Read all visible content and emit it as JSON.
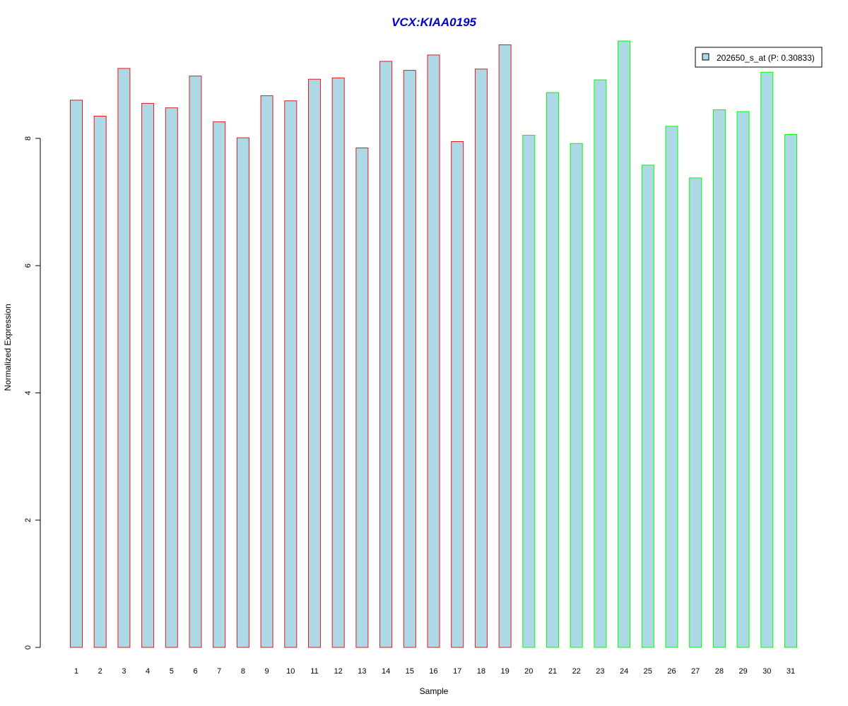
{
  "chart_data": {
    "type": "bar",
    "title": "VCX:KIAA0195",
    "xlabel": "Sample",
    "ylabel": "Normalized Expression",
    "ylim": [
      0,
      9.6
    ],
    "yticks": [
      0,
      2,
      4,
      6,
      8
    ],
    "ytick_labels": [
      "0",
      "2",
      "4",
      "6",
      "8"
    ],
    "categories": [
      "1",
      "2",
      "3",
      "4",
      "5",
      "6",
      "7",
      "8",
      "9",
      "10",
      "11",
      "12",
      "13",
      "14",
      "15",
      "16",
      "17",
      "18",
      "19",
      "20",
      "21",
      "22",
      "23",
      "24",
      "25",
      "26",
      "27",
      "28",
      "29",
      "30",
      "31"
    ],
    "series": [
      {
        "name": "202650_s_at (P: 0.30833)",
        "values": [
          8.6,
          8.35,
          9.1,
          8.55,
          8.48,
          8.98,
          8.26,
          8.01,
          8.67,
          8.59,
          8.93,
          8.95,
          7.85,
          9.21,
          9.07,
          9.31,
          7.95,
          9.09,
          9.47,
          8.05,
          8.72,
          7.92,
          8.92,
          9.53,
          7.58,
          8.19,
          7.38,
          8.45,
          8.42,
          9.04,
          8.06
        ],
        "group": [
          "A",
          "A",
          "A",
          "A",
          "A",
          "A",
          "A",
          "A",
          "A",
          "A",
          "A",
          "A",
          "A",
          "A",
          "A",
          "A",
          "A",
          "A",
          "A",
          "B",
          "B",
          "B",
          "B",
          "B",
          "B",
          "B",
          "B",
          "B",
          "B",
          "B",
          "B"
        ]
      }
    ],
    "legend": {
      "label": "202650_s_at (P: 0.30833)",
      "position": "top-right"
    },
    "grid": false
  },
  "colors": {
    "bar_fill": "#add8e6",
    "group_A_border": "#e41a1c",
    "group_B_border": "#00ff00",
    "title": "#0000cc",
    "axis": "#000000"
  }
}
